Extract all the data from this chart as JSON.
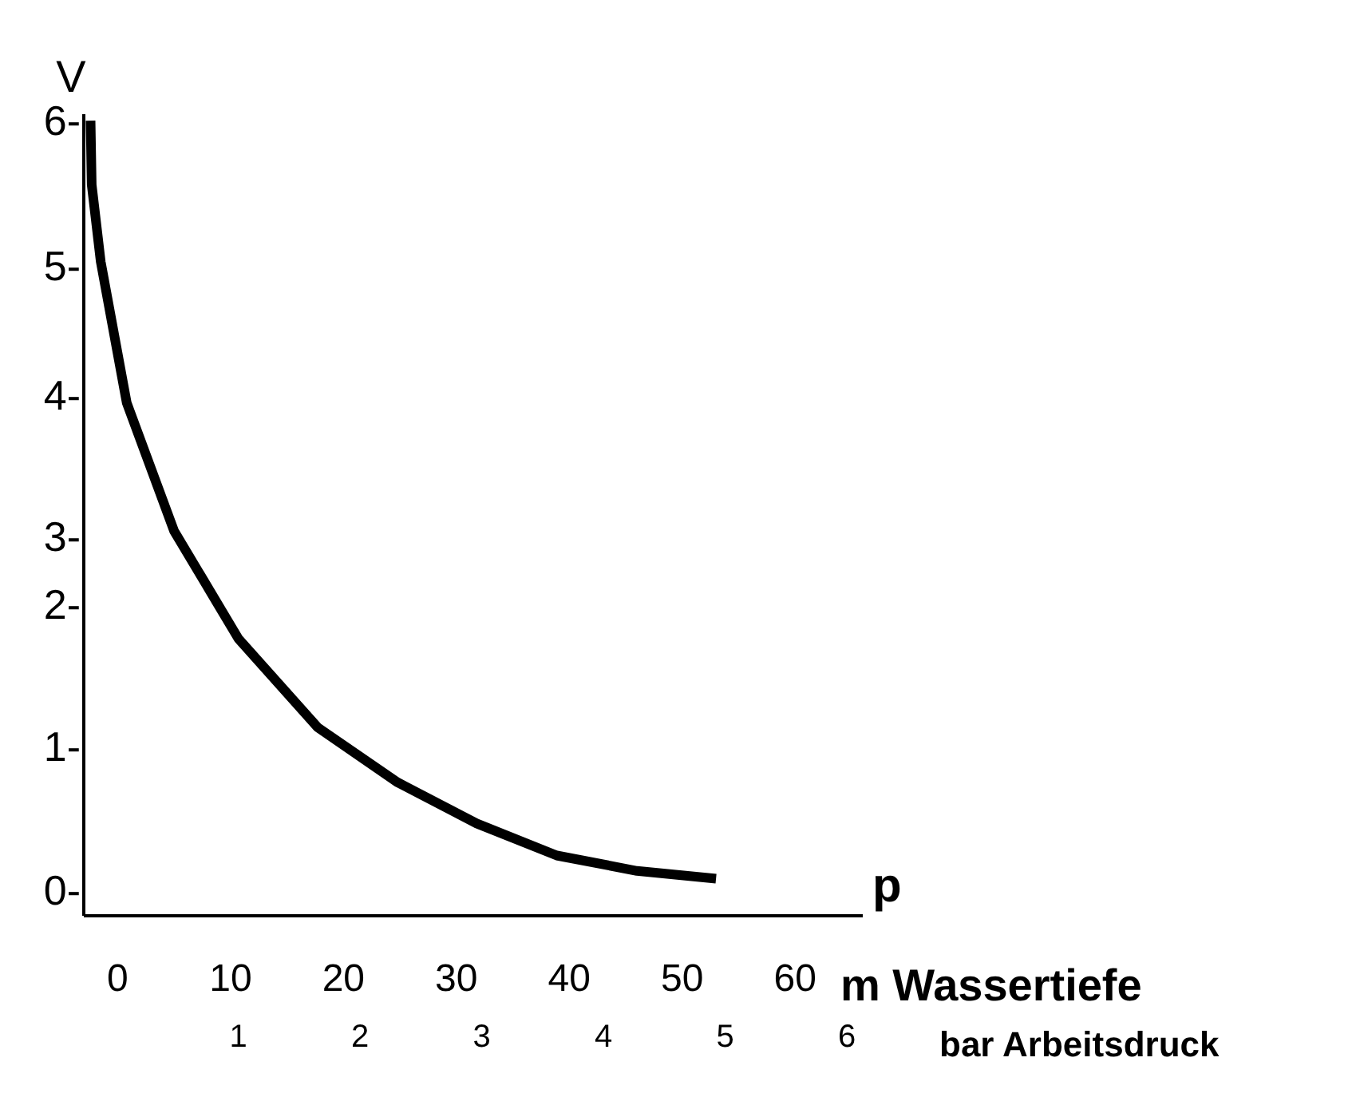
{
  "chart_data": {
    "type": "line",
    "ylabel": "V",
    "xlabel": "m Wassertiefe",
    "x2label": "bar Arbeitsdruck",
    "annotations": [
      "p"
    ],
    "x": [
      -2.4,
      -2.3,
      -1.5,
      0.8,
      5,
      10.7,
      17.7,
      24.8,
      31.8,
      38.9,
      46,
      53
    ],
    "series": [
      {
        "color": "#000000",
        "values": [
          6.0,
          5.5,
          4.9,
          3.8,
          2.8,
          1.96,
          1.27,
          0.84,
          0.52,
          0.27,
          0.15,
          0.09
        ]
      }
    ],
    "xlim": [
      -3,
      66
    ],
    "xticks": [
      0,
      10,
      20,
      30,
      40,
      50,
      60
    ],
    "x2lim": [
      -0.27,
      6.13
    ],
    "x2ticks": [
      1,
      2,
      3,
      4,
      5,
      6
    ],
    "ylim": [
      -0.2,
      6.05
    ],
    "yticks": [
      {
        "value": 0,
        "label": "0-"
      },
      {
        "value": 1.12,
        "label": "1-"
      },
      {
        "value": 2.23,
        "label": "2-"
      },
      {
        "value": 2.76,
        "label": "3-"
      },
      {
        "value": 3.86,
        "label": "4-"
      },
      {
        "value": 4.87,
        "label": "5-"
      },
      {
        "value": 6.0,
        "label": "6-"
      }
    ],
    "grid": false
  }
}
